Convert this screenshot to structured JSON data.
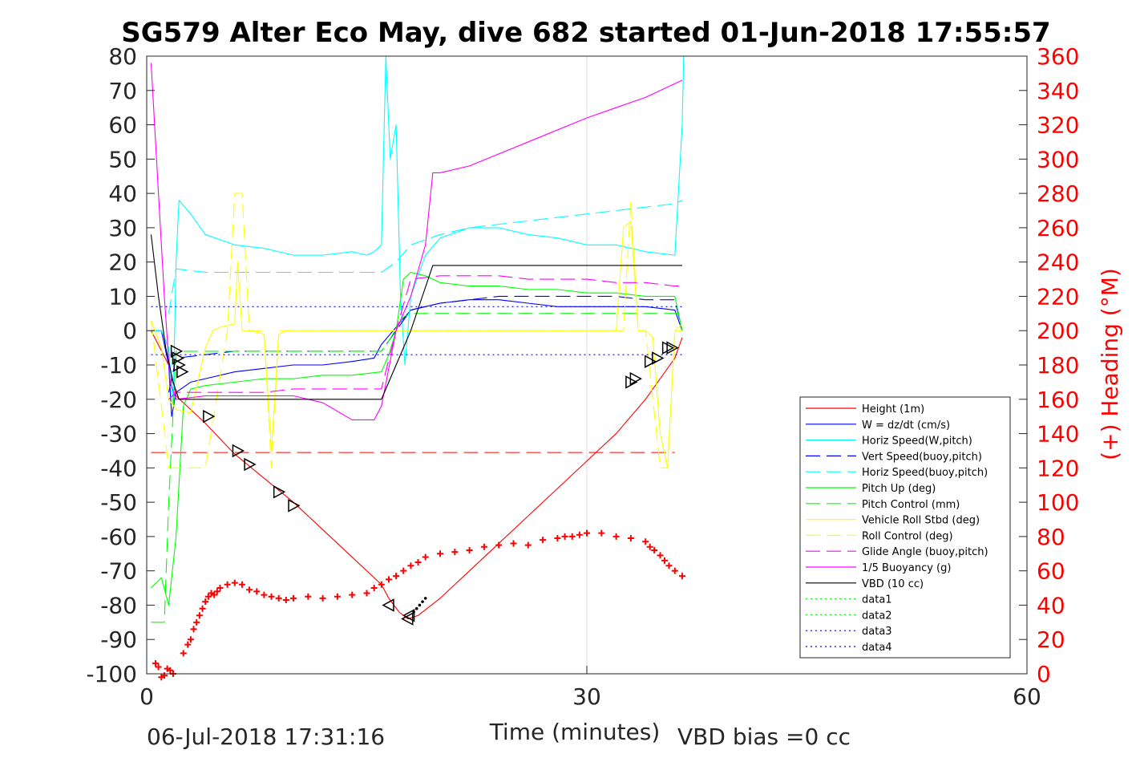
{
  "chart_data": {
    "type": "line",
    "title": "SG579 Alter Eco May, dive 682 started 01-Jun-2018 17:55:57",
    "xlabel": "Time (minutes)",
    "ylabel": "",
    "y2label": "(+) Heading (°M)",
    "xlim": [
      0,
      60
    ],
    "ylim": [
      -100,
      80
    ],
    "y2lim": [
      0,
      360
    ],
    "xticks": [
      "0",
      "30",
      "60"
    ],
    "yticks": [
      "80",
      "70",
      "60",
      "50",
      "40",
      "30",
      "20",
      "10",
      "0",
      "-10",
      "-20",
      "-30",
      "-40",
      "-50",
      "-60",
      "-70",
      "-80",
      "-90",
      "-100"
    ],
    "y2ticks": [
      "360",
      "340",
      "320",
      "300",
      "280",
      "260",
      "240",
      "220",
      "200",
      "180",
      "160",
      "140",
      "120",
      "100",
      "80",
      "60",
      "40",
      "20",
      "0"
    ],
    "grid": "x only",
    "legend_position": "bottom-right",
    "footer_left": "06-Jul-2018 17:31:16",
    "footer_right": "VBD bias =0 cc",
    "series": [
      {
        "name": "Height (1m)",
        "color": "#ff0000",
        "style": "solid",
        "x": [
          0.3,
          1.5,
          2,
          4,
          6,
          8,
          10,
          12,
          14,
          16,
          16.5,
          17.2,
          17.8,
          18.5,
          20,
          22,
          24,
          26,
          28,
          30,
          32,
          34,
          36,
          36.5
        ],
        "y": [
          0,
          -10,
          -19,
          -27,
          -36,
          -43,
          -50,
          -58,
          -66,
          -74,
          -78,
          -82,
          -84,
          -83,
          -78,
          -70,
          -62,
          -54,
          -46,
          -38,
          -30,
          -20,
          -8,
          -2
        ]
      },
      {
        "name": "W = dz/dt (cm/s)",
        "color": "#0000ff",
        "style": "solid",
        "x": [
          0.3,
          1,
          1.5,
          1.7,
          2,
          3,
          4,
          6,
          8,
          10,
          12,
          14,
          15.5,
          16,
          17,
          18,
          20,
          22,
          24,
          26,
          28,
          30,
          32,
          34,
          36,
          36.5
        ],
        "y": [
          0,
          0,
          -10,
          -25,
          -18,
          -15,
          -14,
          -12,
          -11,
          -10,
          -10,
          -9,
          -8,
          -4,
          1,
          6,
          8,
          9,
          9,
          8,
          7,
          7,
          7,
          7,
          6,
          0
        ]
      },
      {
        "name": "Horiz Speed(W,pitch)",
        "color": "#00ffff",
        "style": "solid",
        "x": [
          0.3,
          1,
          1.5,
          1.8,
          2,
          2.2,
          3,
          4,
          6,
          8,
          10,
          12,
          14,
          15,
          15.5,
          16,
          16.3,
          16.6,
          17,
          17.3,
          17.6,
          18,
          19,
          20,
          22,
          24,
          26,
          28,
          30,
          32,
          34,
          36,
          36.5,
          36.6
        ],
        "y": [
          0,
          0,
          -5,
          -22,
          20,
          38,
          34,
          28,
          25,
          24,
          22,
          22,
          23,
          22,
          23,
          25,
          80,
          50,
          60,
          10,
          -10,
          10,
          22,
          27,
          30,
          30,
          28,
          27,
          25,
          25,
          23,
          22,
          60,
          80
        ]
      },
      {
        "name": "Vert Speed(buoy,pitch)",
        "color": "#0000ff",
        "style": "dashed",
        "x": [
          1.5,
          2,
          4,
          6,
          8,
          10,
          12,
          14,
          16,
          17,
          18,
          20,
          22,
          24,
          26,
          28,
          30,
          32,
          34,
          36,
          36.5
        ],
        "y": [
          -18,
          -8,
          -7,
          -6,
          -6,
          -6,
          -6,
          -6,
          -6,
          0,
          6,
          8,
          9,
          10,
          10,
          10,
          10,
          10,
          9,
          9,
          0
        ]
      },
      {
        "name": "Horiz Speed(buoy,pitch)",
        "color": "#00ffff",
        "style": "dashed",
        "x": [
          1.5,
          2,
          4,
          6,
          8,
          10,
          12,
          14,
          16,
          17,
          18,
          20,
          22,
          24,
          26,
          28,
          30,
          32,
          34,
          36,
          36.5
        ],
        "y": [
          5,
          18,
          17,
          17,
          17,
          17,
          17,
          17,
          17,
          20,
          25,
          28,
          30,
          31,
          32,
          33,
          34,
          35,
          36,
          37,
          38
        ]
      },
      {
        "name": "Pitch Up (deg)",
        "color": "#00ff00",
        "style": "solid",
        "x": [
          0.3,
          1,
          1.5,
          2,
          2.5,
          3,
          4,
          6,
          8,
          10,
          12,
          14,
          16,
          16.5,
          17,
          17.5,
          18,
          19,
          20,
          22,
          24,
          26,
          28,
          30,
          32,
          34,
          36,
          36.5
        ],
        "y": [
          -75,
          -72,
          -80,
          -60,
          -22,
          -17,
          -16,
          -15,
          -14,
          -14,
          -13,
          -13,
          -12,
          -7,
          0,
          15,
          17,
          16,
          14,
          13,
          13,
          12,
          12,
          11,
          11,
          10,
          10,
          0
        ]
      },
      {
        "name": "Pitch Control (mm)",
        "color": "#00ff00",
        "style": "dashed",
        "x": [
          0.3,
          1.2,
          1.5,
          2,
          2.5,
          16,
          16.5,
          17.5,
          18,
          36.5
        ],
        "y": [
          -85,
          -85,
          -50,
          -6,
          -6,
          -6,
          -3,
          4,
          5,
          5
        ]
      },
      {
        "name": "Vehicle Roll Stbd (deg)",
        "color": "#ffff00",
        "style": "solid",
        "x": [
          0.3,
          1,
          1.5,
          2,
          3,
          4,
          4.5,
          5,
          6,
          6.2,
          6.5,
          7,
          8,
          8.5,
          9,
          9.5,
          10,
          12,
          14,
          16,
          17,
          18,
          20,
          24,
          28,
          32,
          32.5,
          33,
          33.5,
          34,
          34.5,
          35,
          35.5,
          36,
          36.5
        ],
        "y": [
          3,
          -5,
          -20,
          -23,
          -24,
          -5,
          0,
          1,
          2,
          20,
          0,
          0,
          -1,
          -35,
          -1,
          0,
          0,
          0,
          0,
          0,
          0,
          0,
          0,
          0,
          0,
          0,
          30,
          32,
          0,
          0,
          -2,
          -30,
          -40,
          0,
          2
        ]
      },
      {
        "name": "Roll Control (deg)",
        "color": "#ffff00",
        "style": "dashed",
        "x": [
          0.3,
          1.5,
          2,
          3,
          4,
          5.5,
          6,
          6.5,
          7,
          8,
          8.5,
          9,
          10,
          16,
          18,
          32.5,
          33,
          33.5,
          34,
          35,
          35.5,
          36,
          36.5
        ],
        "y": [
          3,
          -40,
          -40,
          -40,
          -40,
          0,
          40,
          40,
          0,
          0,
          -40,
          0,
          0,
          0,
          0,
          0,
          38,
          0,
          0,
          -40,
          -40,
          0,
          0
        ]
      },
      {
        "name": "Glide Angle (buoy,pitch)",
        "color": "#ff00ff",
        "style": "dashed",
        "x": [
          1.5,
          2,
          4,
          6,
          8,
          10,
          12,
          14,
          16,
          17,
          18,
          20,
          22,
          24,
          26,
          28,
          30,
          32,
          34,
          36,
          36.5
        ],
        "y": [
          -20,
          -18,
          -18,
          -18,
          -18,
          -17,
          -17,
          -17,
          -17,
          0,
          15,
          16,
          16,
          16,
          15,
          15,
          15,
          14,
          14,
          13,
          13
        ]
      },
      {
        "name": "1/5 Buoyancy (g)",
        "color": "#ff00ff",
        "style": "solid",
        "x": [
          0.3,
          0.8,
          1.2,
          1.6,
          2,
          4,
          8,
          10,
          12,
          14,
          15.5,
          16,
          17,
          18,
          19,
          19.5,
          20,
          22,
          26,
          30,
          34,
          36.5
        ],
        "y": [
          78,
          40,
          10,
          -15,
          -20,
          -19,
          -19,
          -19,
          -21,
          -26,
          -26,
          -22,
          0,
          10,
          25,
          46,
          46,
          48,
          55,
          62,
          68,
          73
        ]
      },
      {
        "name": "VBD (10 cc)",
        "color": "#000000",
        "style": "solid",
        "x": [
          0.3,
          0.8,
          1.3,
          1.8,
          2.2,
          4,
          8,
          12,
          16,
          18,
          19.5,
          20,
          25,
          30,
          35,
          36.5
        ],
        "y": [
          28,
          10,
          -5,
          -15,
          -20,
          -20,
          -20,
          -20,
          -20,
          0,
          19,
          19,
          19,
          19,
          19,
          19
        ]
      },
      {
        "name": "data1",
        "color": "#00ff00",
        "style": "dotted",
        "x": [],
        "y": []
      },
      {
        "name": "data2",
        "color": "#00ff00",
        "style": "dotted",
        "x": [],
        "y": []
      },
      {
        "name": "data3",
        "color": "#0000ff",
        "style": "dotted",
        "x": [
          0.3,
          36.5
        ],
        "y": [
          7,
          7
        ]
      },
      {
        "name": "data4",
        "color": "#0000ff",
        "style": "dotted",
        "x": [
          0.3,
          36.5
        ],
        "y": [
          -7,
          -7
        ]
      }
    ],
    "reference_line": {
      "color": "#ff0000",
      "style": "dashed",
      "x": [
        0.3,
        36
      ],
      "y": [
        -35.5,
        -35.5
      ]
    },
    "heading_markers": {
      "color": "#ff0000",
      "marker": "+",
      "axis": "right",
      "x": [
        0.6,
        0.8,
        1,
        1.2,
        1.4,
        1.6,
        1.8,
        2.5,
        2.8,
        3,
        3.2,
        3.4,
        3.6,
        3.8,
        4,
        4.2,
        4.4,
        4.6,
        4.8,
        5,
        5.5,
        6,
        6.5,
        7,
        7.5,
        8,
        8.5,
        9,
        9.5,
        10,
        11,
        12,
        13,
        14,
        15,
        15.5,
        16,
        16.5,
        17,
        17.5,
        18,
        18.5,
        19,
        20,
        21,
        22,
        23,
        24,
        25,
        26,
        27,
        28,
        28.5,
        29,
        29.5,
        30,
        31,
        32,
        33,
        34,
        34.3,
        34.6,
        35,
        35.3,
        35.6,
        36,
        36.5
      ],
      "y": [
        6,
        4,
        -2,
        -1,
        3,
        2,
        0,
        12,
        17,
        20,
        26,
        30,
        34,
        38,
        42,
        45,
        47,
        46,
        48,
        50,
        52,
        53,
        52,
        49,
        48,
        46,
        45,
        44,
        43,
        44,
        45,
        44,
        45,
        46,
        47,
        50,
        52,
        55,
        57,
        60,
        63,
        65,
        68,
        70,
        71,
        72,
        74,
        75,
        76,
        75,
        78,
        79,
        80,
        80,
        81,
        82,
        82,
        80,
        79,
        77,
        74,
        72,
        69,
        66,
        63,
        60,
        57
      ],
      "note": "positions traced on the figure"
    },
    "triangle_markers_descent": {
      "color": "#000000",
      "x": [
        2,
        2.1,
        2.2,
        2.4,
        4.2,
        6.2,
        7,
        9,
        10
      ],
      "y": [
        -6,
        -8,
        -10,
        -12,
        -25,
        -35,
        -39,
        -47,
        -51
      ]
    },
    "triangle_markers_bottom": {
      "color": "#000000",
      "x": [
        16.5,
        17.8,
        17.9
      ],
      "y": [
        -80,
        -84,
        -83
      ]
    },
    "triangle_markers_ascent": {
      "color": "#000000",
      "x": [
        33,
        33.3,
        34.3,
        34.8,
        35.5,
        35.8
      ],
      "y": [
        -15,
        -14,
        -9,
        -8,
        -5,
        -5
      ]
    },
    "bottom_points": {
      "color": "#000000",
      "x": [
        18.2,
        18.4,
        18.6,
        18.8,
        19
      ],
      "y": [
        -82,
        -81,
        -80,
        -79,
        -78
      ]
    }
  }
}
